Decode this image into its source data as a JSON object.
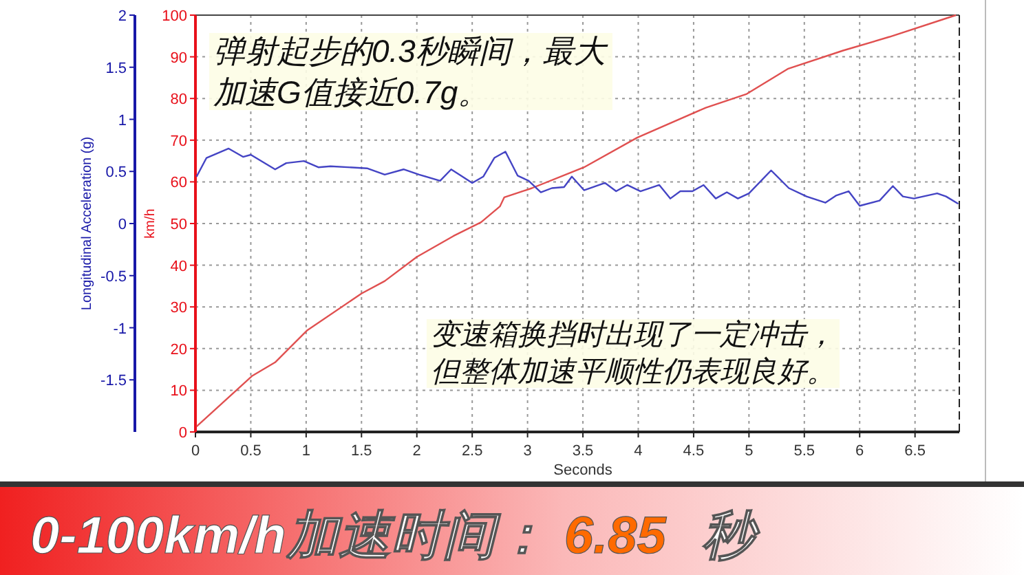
{
  "chart_data": {
    "type": "line",
    "xlabel": "Seconds",
    "ylabel": "km/h",
    "y2label": "Longitudinal Acceleration (g)",
    "xlim": [
      0,
      6.9
    ],
    "xticks": [
      0,
      0.5,
      1,
      1.5,
      2,
      2.5,
      3,
      3.5,
      4,
      4.5,
      5,
      5.5,
      6,
      6.5
    ],
    "ylim": [
      0,
      100
    ],
    "yticks": [
      0,
      10,
      20,
      30,
      40,
      50,
      60,
      70,
      80,
      90,
      100
    ],
    "y2lim": [
      -2,
      2
    ],
    "y2ticks": [
      -1.5,
      -1,
      -0.5,
      0,
      0.5,
      1,
      1.5,
      2
    ],
    "grid": true,
    "series": [
      {
        "color": "#e05050",
        "x": [
          0.01,
          0.51,
          0.72,
          1.01,
          1.5,
          1.71,
          2.0,
          2.33,
          2.58,
          2.75,
          2.79,
          3.04,
          3.51,
          3.99,
          4.61,
          4.98,
          5.35,
          5.85,
          6.27,
          6.87
        ],
        "values": [
          1.3,
          13.4,
          16.7,
          24.4,
          33.2,
          36.2,
          42,
          47,
          50.3,
          54.1,
          56.3,
          58.5,
          63.5,
          70.6,
          77.8,
          81.1,
          87.1,
          91.5,
          94.8,
          100
        ]
      },
      {
        "color": "#4444c4",
        "axis": "y2",
        "x": [
          0.01,
          0.1,
          0.3,
          0.43,
          0.5,
          0.72,
          0.82,
          0.98,
          1.11,
          1.22,
          1.55,
          1.71,
          1.88,
          2.02,
          2.21,
          2.31,
          2.5,
          2.6,
          2.7,
          2.8,
          2.91,
          3.01,
          3.12,
          3.22,
          3.33,
          3.4,
          3.51,
          3.7,
          3.8,
          3.9,
          4.02,
          4.19,
          4.29,
          4.38,
          4.49,
          4.59,
          4.7,
          4.8,
          4.9,
          5.0,
          5.2,
          5.36,
          5.52,
          5.69,
          5.79,
          5.9,
          6.0,
          6.18,
          6.3,
          6.39,
          6.49,
          6.7,
          6.78,
          6.89
        ],
        "values": [
          0.45,
          0.63,
          0.72,
          0.64,
          0.66,
          0.52,
          0.58,
          0.6,
          0.54,
          0.55,
          0.53,
          0.47,
          0.52,
          0.47,
          0.41,
          0.52,
          0.39,
          0.45,
          0.63,
          0.69,
          0.46,
          0.41,
          0.3,
          0.34,
          0.35,
          0.45,
          0.32,
          0.39,
          0.31,
          0.37,
          0.31,
          0.37,
          0.24,
          0.31,
          0.31,
          0.37,
          0.24,
          0.3,
          0.24,
          0.29,
          0.51,
          0.34,
          0.26,
          0.2,
          0.27,
          0.31,
          0.17,
          0.22,
          0.36,
          0.26,
          0.24,
          0.29,
          0.26,
          0.19
        ]
      }
    ],
    "annotations": [
      "弹射起步的0.3秒瞬间，最大",
      "加速G值接近0.7g。",
      "变速箱换挡时出现了一定冲击，",
      "但整体加速平顺性仍表现良好。",
      "0-100km/h加速时间：",
      "6.85",
      "秒"
    ]
  }
}
